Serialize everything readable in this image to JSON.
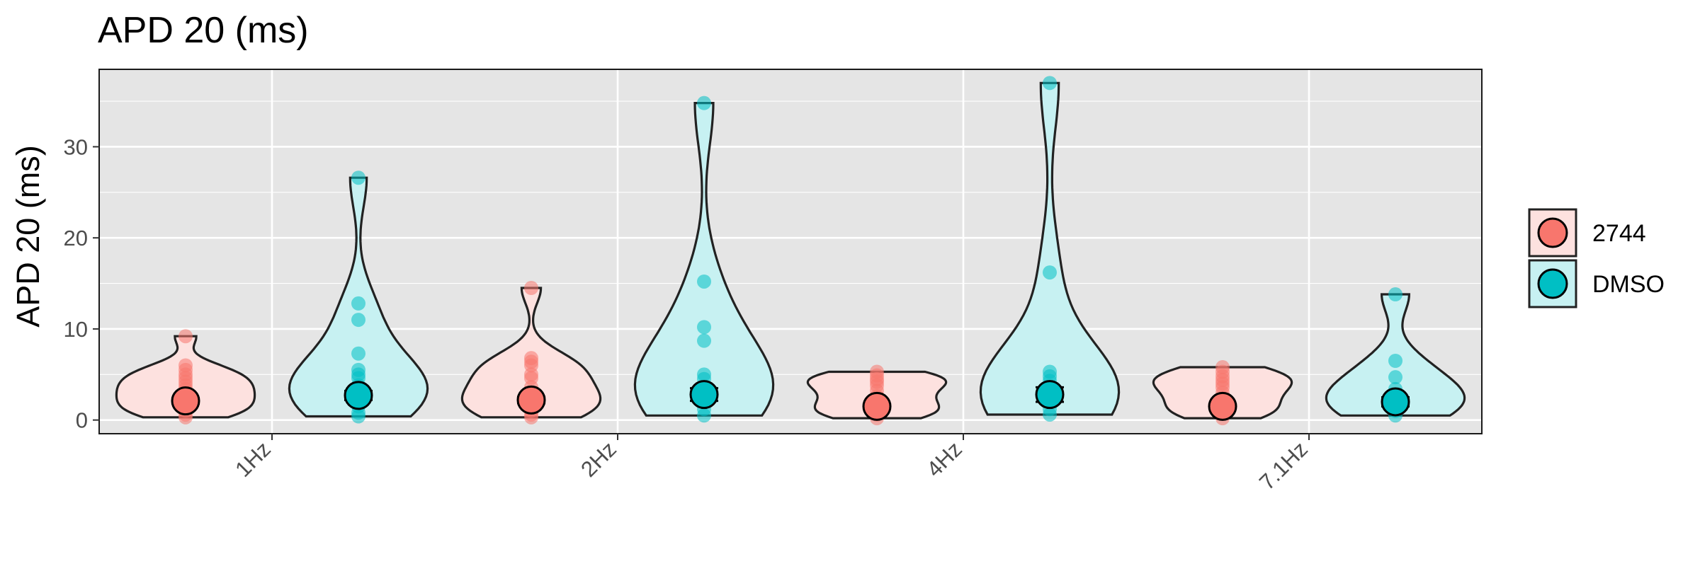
{
  "chart_data": {
    "type": "violin",
    "title": "APD 20 (ms)",
    "xlabel": "",
    "ylabel": "APD 20 (ms)",
    "ylim": [
      -1.5,
      38.5
    ],
    "yticks": [
      0,
      10,
      20,
      30
    ],
    "categories": [
      "1Hz",
      "2Hz",
      "4Hz",
      "7.1Hz"
    ],
    "grid": true,
    "legend_position": "right",
    "series": [
      {
        "name": "2744",
        "color": "#F8766D",
        "groups": [
          {
            "category": "1Hz",
            "mean": 2.1,
            "se": 0.3,
            "points": [
              9.2,
              6.0,
              5.5,
              5.0,
              4.6,
              4.2,
              3.8,
              3.4,
              3.0,
              2.6,
              2.2,
              1.8,
              1.4,
              1.0,
              0.6,
              0.3
            ]
          },
          {
            "category": "2Hz",
            "mean": 2.2,
            "se": 0.35,
            "points": [
              14.5,
              6.8,
              6.4,
              6.0,
              5.0,
              4.6,
              3.6,
              3.0,
              2.5,
              2.0,
              1.5,
              1.0,
              0.6,
              0.3
            ]
          },
          {
            "category": "4Hz",
            "mean": 1.5,
            "se": 0.2,
            "points": [
              5.3,
              4.9,
              4.5,
              4.2,
              3.8,
              3.2,
              2.6,
              2.0,
              1.5,
              1.0,
              0.6,
              0.2
            ]
          },
          {
            "category": "7.1Hz",
            "mean": 1.5,
            "se": 0.25,
            "points": [
              5.8,
              5.3,
              4.8,
              4.4,
              4.0,
              3.6,
              3.0,
              2.4,
              1.8,
              1.2,
              0.7,
              0.2
            ]
          }
        ]
      },
      {
        "name": "DMSO",
        "color": "#00BFC4",
        "groups": [
          {
            "category": "1Hz",
            "mean": 2.7,
            "se": 0.5,
            "points": [
              26.6,
              12.8,
              11.0,
              7.3,
              5.5,
              5.0,
              4.6,
              3.8,
              3.0,
              2.2,
              1.5,
              0.8,
              0.4
            ]
          },
          {
            "category": "2Hz",
            "mean": 2.8,
            "se": 0.7,
            "points": [
              34.8,
              15.2,
              10.2,
              8.7,
              5.0,
              4.5,
              3.6,
              2.8,
              2.0,
              1.2,
              0.5
            ]
          },
          {
            "category": "4Hz",
            "mean": 2.8,
            "se": 0.8,
            "points": [
              37.0,
              16.2,
              5.3,
              4.8,
              4.3,
              3.5,
              2.7,
              2.0,
              1.2,
              0.6
            ]
          },
          {
            "category": "7.1Hz",
            "mean": 2.0,
            "se": 0.5,
            "points": [
              13.8,
              6.5,
              4.7,
              3.4,
              2.6,
              1.8,
              1.0,
              0.5
            ]
          }
        ]
      }
    ]
  }
}
